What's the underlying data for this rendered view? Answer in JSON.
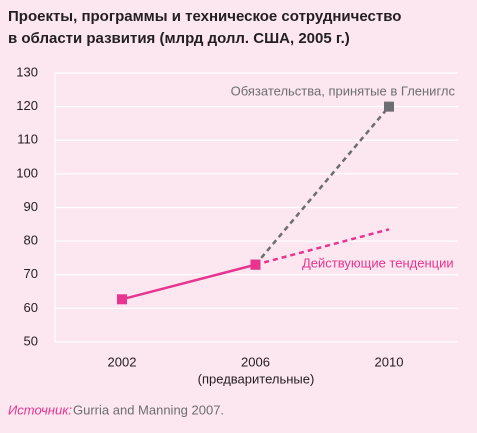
{
  "chart_data": {
    "type": "line",
    "title": [
      "Проекты, программы и техническое сотрудничество",
      "в области развития (млрд долл. США, 2005 г.)"
    ],
    "categories": [
      "2002",
      "2006",
      "2010"
    ],
    "category_note": "(предварительные)",
    "ylim": [
      50,
      130
    ],
    "yticks": [
      50,
      60,
      70,
      80,
      90,
      100,
      110,
      120,
      130
    ],
    "grid": true,
    "series": [
      {
        "name": "Обязательства, принятые в Глениглс",
        "color": "#6d6e71",
        "dash": true,
        "markers": true,
        "values": [
          null,
          73,
          120
        ]
      },
      {
        "name": "Действующие тенденции",
        "color": "#e8348f",
        "dash": true,
        "markers": false,
        "values": [
          null,
          73,
          83.5
        ]
      },
      {
        "color": "#e8348f",
        "dash": false,
        "markers": true,
        "values": [
          62.7,
          73,
          null
        ]
      }
    ],
    "source": {
      "label": "Источник:",
      "text": "Gurria and Manning 2007."
    }
  }
}
